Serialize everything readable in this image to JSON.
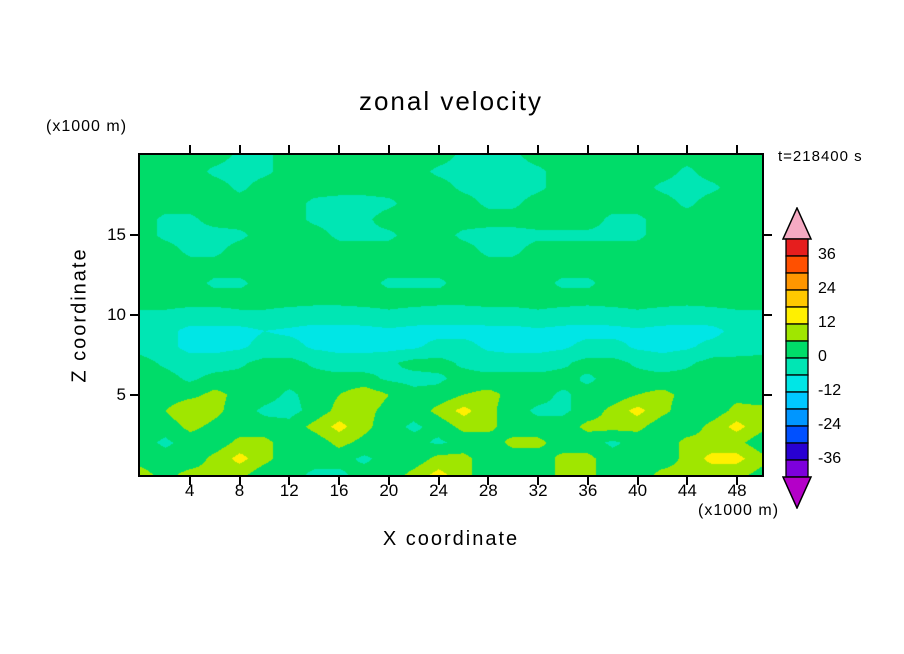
{
  "chart_data": {
    "type": "heatmap",
    "title": "zonal velocity",
    "time_label": "t=218400 s",
    "x_axis": {
      "label": "X coordinate",
      "unit": "(x1000 m)",
      "range": [
        0,
        50
      ],
      "ticks": [
        4,
        8,
        12,
        16,
        20,
        24,
        28,
        32,
        36,
        40,
        44,
        48
      ]
    },
    "z_axis": {
      "label": "Z coordinate",
      "unit": "(x1000 m)",
      "range": [
        0,
        20
      ],
      "ticks": [
        5,
        10,
        15
      ]
    },
    "legend_position": "right",
    "colorbar": {
      "labels": [
        "36",
        "24",
        "12",
        "0",
        "-12",
        "-24",
        "-36"
      ],
      "top_value": 42,
      "bottom_value": -42,
      "step": 6
    },
    "levels": [
      -42,
      -36,
      -30,
      -24,
      -18,
      -12,
      -6,
      0,
      6,
      12,
      18,
      24,
      30,
      36,
      42
    ],
    "colors": [
      "#b400c8",
      "#7d00dc",
      "#2800d2",
      "#0050ff",
      "#0096ff",
      "#00c8ff",
      "#00e6e6",
      "#00e6b4",
      "#00dc69",
      "#a0e600",
      "#fff000",
      "#ffc800",
      "#ff9600",
      "#ff5000",
      "#e61e1e",
      "#f5aac3"
    ],
    "grid": {
      "x_range": [
        0,
        50
      ],
      "x_step": 2,
      "z_range_top_to_bottom": [
        20,
        0
      ],
      "z_step": 1,
      "values": [
        [
          2,
          2,
          2,
          2,
          -1,
          -1,
          2,
          2,
          2,
          2,
          2,
          2,
          2,
          -1,
          -1,
          -1,
          2,
          2,
          2,
          2,
          2,
          2,
          2,
          2,
          2,
          2
        ],
        [
          2,
          2,
          2,
          -1,
          -2,
          -1,
          2,
          2,
          2,
          2,
          2,
          2,
          -1,
          -2,
          -2,
          -2,
          -1,
          2,
          2,
          2,
          2,
          2,
          -1,
          2,
          2,
          2
        ],
        [
          2,
          2,
          2,
          2,
          -1,
          2,
          2,
          2,
          2,
          2,
          2,
          2,
          2,
          -1,
          -2,
          -2,
          -1,
          2,
          2,
          2,
          2,
          -1,
          -2,
          -1,
          2,
          2
        ],
        [
          2,
          2,
          2,
          2,
          2,
          2,
          2,
          -1,
          -2,
          -2,
          -1,
          2,
          2,
          2,
          -1,
          -1,
          2,
          2,
          2,
          2,
          2,
          2,
          -1,
          2,
          2,
          2
        ],
        [
          2,
          -1,
          -1,
          2,
          2,
          2,
          2,
          -1,
          -2,
          -1,
          2,
          2,
          2,
          2,
          2,
          2,
          2,
          2,
          2,
          -1,
          -1,
          2,
          2,
          2,
          2,
          2
        ],
        [
          2,
          -1,
          -2,
          -2,
          -1,
          2,
          2,
          2,
          -1,
          -1,
          -1,
          2,
          2,
          -1,
          -2,
          -2,
          -1,
          -1,
          -1,
          -1,
          -1,
          2,
          2,
          2,
          2,
          2
        ],
        [
          2,
          2,
          -1,
          -1,
          2,
          2,
          2,
          2,
          2,
          2,
          2,
          2,
          2,
          2,
          -1,
          -1,
          2,
          2,
          2,
          2,
          2,
          2,
          2,
          2,
          2,
          2
        ],
        [
          2,
          2,
          2,
          2,
          2,
          2,
          2,
          2,
          2,
          2,
          2,
          2,
          2,
          2,
          2,
          2,
          2,
          2,
          2,
          2,
          2,
          2,
          2,
          2,
          2,
          2
        ],
        [
          2,
          2,
          2,
          -1,
          -1,
          2,
          2,
          2,
          2,
          2,
          -1,
          -1,
          -1,
          2,
          2,
          2,
          2,
          -1,
          -1,
          2,
          2,
          2,
          2,
          2,
          2,
          2
        ],
        [
          2,
          2,
          2,
          2,
          2,
          2,
          2,
          2,
          2,
          2,
          2,
          2,
          2,
          2,
          2,
          2,
          2,
          2,
          2,
          2,
          2,
          2,
          2,
          2,
          2,
          2
        ],
        [
          -1,
          -1,
          -2,
          -2,
          -1,
          -1,
          -2,
          -3,
          -3,
          -2,
          -1,
          -2,
          -3,
          -3,
          -2,
          -2,
          -1,
          -2,
          -3,
          -2,
          -1,
          -2,
          -3,
          -2,
          -1,
          -1
        ],
        [
          -2,
          -4,
          -8,
          -8,
          -8,
          -6,
          -7,
          -8,
          -8,
          -8,
          -7,
          -8,
          -8,
          -8,
          -8,
          -8,
          -7,
          -8,
          -8,
          -8,
          -7,
          -8,
          -8,
          -8,
          -4,
          -2
        ],
        [
          -2,
          -4,
          -8,
          -8,
          -7,
          -4,
          -4,
          -7,
          -8,
          -8,
          -8,
          -7,
          -4,
          -4,
          -7,
          -8,
          -8,
          -7,
          -4,
          -4,
          -7,
          -8,
          -7,
          -4,
          -3,
          -2
        ],
        [
          2,
          -1,
          -3,
          -3,
          -1,
          2,
          2,
          -1,
          -3,
          -3,
          -1,
          2,
          2,
          -1,
          -3,
          -3,
          -3,
          -1,
          2,
          2,
          -1,
          -3,
          -1,
          2,
          2,
          2
        ],
        [
          2,
          2,
          -1,
          2,
          2,
          2,
          2,
          2,
          2,
          2,
          -1,
          -2,
          -1,
          2,
          2,
          2,
          2,
          2,
          -1,
          2,
          2,
          2,
          2,
          2,
          2,
          2
        ],
        [
          2,
          2,
          4,
          8,
          4,
          2,
          -1,
          2,
          6,
          10,
          6,
          2,
          2,
          6,
          8,
          4,
          2,
          -1,
          2,
          2,
          6,
          8,
          4,
          2,
          4,
          2
        ],
        [
          2,
          6,
          12,
          8,
          2,
          -1,
          -2,
          2,
          8,
          8,
          4,
          2,
          8,
          14,
          8,
          2,
          -1,
          -1,
          2,
          8,
          14,
          8,
          2,
          2,
          8,
          8
        ],
        [
          2,
          2,
          8,
          4,
          2,
          2,
          2,
          8,
          14,
          8,
          2,
          -1,
          2,
          8,
          8,
          2,
          2,
          2,
          8,
          8,
          8,
          2,
          2,
          8,
          14,
          8
        ],
        [
          2,
          -1,
          2,
          2,
          8,
          8,
          2,
          2,
          8,
          4,
          2,
          2,
          -1,
          2,
          2,
          8,
          8,
          2,
          2,
          -1,
          2,
          2,
          8,
          8,
          8,
          2
        ],
        [
          4,
          2,
          2,
          8,
          14,
          8,
          2,
          2,
          2,
          -1,
          2,
          2,
          8,
          8,
          2,
          2,
          2,
          8,
          8,
          2,
          2,
          2,
          8,
          14,
          14,
          8
        ],
        [
          8,
          4,
          8,
          8,
          8,
          2,
          2,
          -1,
          -1,
          2,
          2,
          8,
          14,
          8,
          2,
          2,
          2,
          8,
          8,
          2,
          2,
          8,
          8,
          8,
          8,
          4
        ]
      ]
    }
  }
}
